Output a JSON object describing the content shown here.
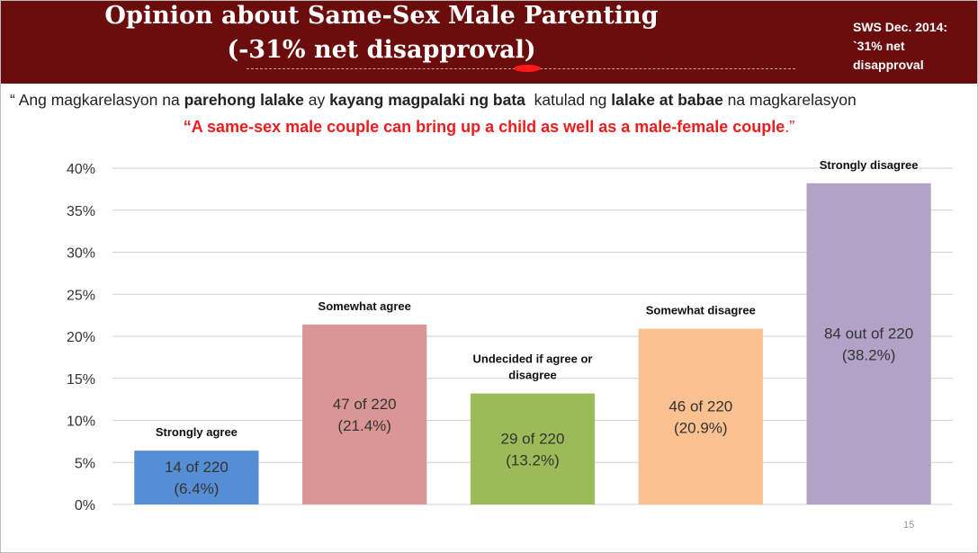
{
  "header": {
    "title_line1": "Opinion about Same-Sex Male Parenting",
    "title_line2": "(-31% net disapproval)",
    "note_lines": [
      "SWS Dec. 2014:",
      "`31% net",
      "disapproval"
    ]
  },
  "quote": {
    "filipino_parts": [
      {
        "text": "“ Ang magkarelasyon na ",
        "bold": false
      },
      {
        "text": "parehong lalake",
        "bold": true
      },
      {
        "text": " ay ",
        "bold": false
      },
      {
        "text": "kayang magpalaki ng bata",
        "bold": true
      },
      {
        "text": "  katulad ng ",
        "bold": false
      },
      {
        "text": "lalake at babae",
        "bold": true
      },
      {
        "text": " na magkarelasyon",
        "bold": false
      }
    ],
    "english_main": "“A same-sex male couple can bring up a child as well as a male-female couple",
    "english_tail": ".”"
  },
  "chart_data": {
    "type": "bar",
    "ylim": [
      0,
      40
    ],
    "yticks": [
      0,
      5,
      10,
      15,
      20,
      25,
      30,
      35,
      40
    ],
    "ytick_labels": [
      "0%",
      "5%",
      "10%",
      "15%",
      "20%",
      "25%",
      "30%",
      "35%",
      "40%"
    ],
    "grid": true,
    "categories": [
      {
        "label_lines": [
          "Strongly agree"
        ],
        "value": 6.4,
        "color": "#558ed5",
        "data_label_lines": [
          "14 of 220",
          "(6.4%)"
        ]
      },
      {
        "label_lines": [
          "Somewhat agree"
        ],
        "value": 21.4,
        "color": "#d99694",
        "data_label_lines": [
          "47 of 220",
          "(21.4%)"
        ]
      },
      {
        "label_lines": [
          "Undecided if agree or",
          "disagree"
        ],
        "value": 13.2,
        "color": "#9bbb59",
        "data_label_lines": [
          "29 of 220",
          "(13.2%)"
        ]
      },
      {
        "label_lines": [
          "Somewhat disagree"
        ],
        "value": 20.9,
        "color": "#fac090",
        "data_label_lines": [
          "46 of 220",
          "(20.9%)"
        ]
      },
      {
        "label_lines": [
          "Strongly disagree"
        ],
        "value": 38.2,
        "color": "#b3a2c7",
        "data_label_lines": [
          "84 out of 220",
          "(38.2%)"
        ]
      }
    ]
  },
  "footer": {
    "page_number": "15"
  }
}
